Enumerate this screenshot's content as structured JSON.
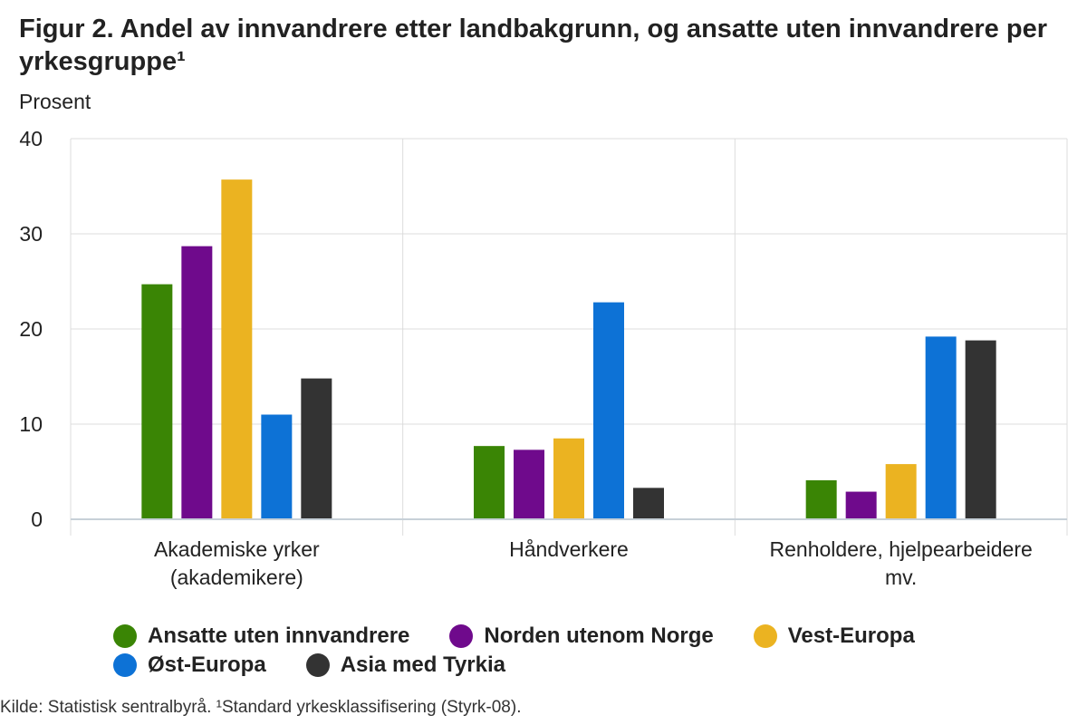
{
  "page": {
    "title": "Figur 2. Andel av innvandrere etter landbakgrunn, og ansatte uten innvandrere per yrkesgruppe¹",
    "source": "Kilde: Statistisk sentralbyrå. ¹Standard yrkesklassifisering (Styrk-08)."
  },
  "chart_data": {
    "type": "bar",
    "title": "Figur 2. Andel av innvandrere etter landbakgrunn, og ansatte uten innvandrere per yrkesgruppe¹",
    "ylabel": "Prosent",
    "xlabel": "",
    "ylim": [
      0,
      40
    ],
    "yticks": [
      0,
      10,
      20,
      30,
      40
    ],
    "grid": true,
    "legend_position": "bottom",
    "categories": [
      [
        "Akademiske yrker",
        "(akademikere)"
      ],
      [
        "Håndverkere"
      ],
      [
        "Renholdere, hjelpearbeidere",
        "mv."
      ]
    ],
    "series": [
      {
        "name": "Ansatte uten innvandrere",
        "color": "#3a8505",
        "values": [
          24.7,
          7.7,
          4.1
        ]
      },
      {
        "name": "Norden utenom Norge",
        "color": "#6f0a8c",
        "values": [
          28.7,
          7.3,
          2.9
        ]
      },
      {
        "name": "Vest-Europa",
        "color": "#ebb321",
        "values": [
          35.7,
          8.5,
          5.8
        ]
      },
      {
        "name": "Øst-Europa",
        "color": "#0d72d6",
        "values": [
          11.0,
          22.8,
          19.2
        ]
      },
      {
        "name": "Asia med Tyrkia",
        "color": "#333333",
        "values": [
          14.8,
          3.3,
          18.8
        ]
      }
    ]
  }
}
